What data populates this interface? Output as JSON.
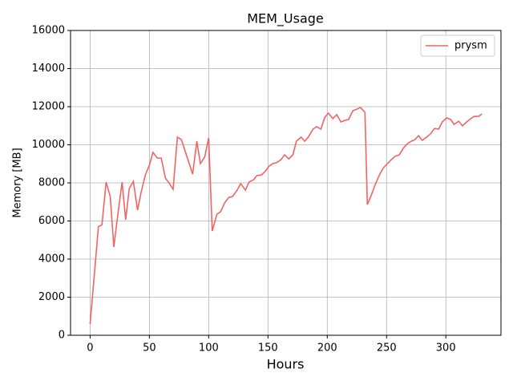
{
  "chart_data": {
    "type": "line",
    "title": "MEM_Usage",
    "x_label": "Hours",
    "y_label": "Memory [MB]",
    "x": [
      0,
      4.7,
      7,
      10,
      13.5,
      17,
      20,
      23.6,
      27,
      30,
      33,
      36.5,
      40,
      43,
      46.6,
      50,
      53,
      56.7,
      60,
      63.5,
      67,
      70,
      73.6,
      77,
      86.5,
      90,
      93,
      96.6,
      100,
      103,
      107,
      110,
      113.5,
      117,
      120,
      123.6,
      127,
      131,
      134,
      138,
      140.5,
      144.6,
      148,
      151,
      154,
      157,
      161,
      164,
      167.6,
      171,
      174,
      178,
      181,
      184,
      188,
      191,
      194.6,
      198,
      201,
      204.7,
      208,
      211.5,
      215,
      218,
      221.6,
      225,
      228,
      231.8,
      233.8,
      237,
      240.5,
      244,
      247,
      250.7,
      254,
      257,
      260.8,
      264,
      267.6,
      271,
      274,
      277,
      280,
      283.8,
      287,
      290.5,
      294,
      297,
      300.7,
      304,
      307,
      310.8,
      314,
      317.6,
      321,
      324,
      327.7,
      330.4
    ],
    "series": [
      {
        "name": "prysm",
        "color": "#f26464",
        "values": [
          590,
          4000,
          5700,
          5800,
          8040,
          7280,
          4630,
          6440,
          8040,
          6060,
          7700,
          8080,
          6570,
          7500,
          8420,
          8930,
          9600,
          9300,
          9300,
          8250,
          7960,
          7660,
          10400,
          10270,
          8460,
          10190,
          9010,
          9350,
          10360,
          5470,
          6360,
          6480,
          6950,
          7240,
          7280,
          7580,
          7960,
          7620,
          8040,
          8170,
          8380,
          8420,
          8630,
          8880,
          9010,
          9050,
          9220,
          9470,
          9260,
          9470,
          10190,
          10400,
          10190,
          10400,
          10820,
          10950,
          10820,
          11450,
          11660,
          11370,
          11580,
          11200,
          11280,
          11330,
          11790,
          11870,
          11960,
          11700,
          6860,
          7330,
          7920,
          8420,
          8760,
          9010,
          9220,
          9390,
          9470,
          9810,
          10060,
          10190,
          10270,
          10480,
          10230,
          10400,
          10570,
          10860,
          10820,
          11200,
          11410,
          11330,
          11070,
          11240,
          10990,
          11200,
          11370,
          11490,
          11490,
          11620
        ]
      }
    ],
    "xlim": [
      -16.5,
      346.5
    ],
    "ylim": [
      0,
      16000
    ],
    "xticks": [
      0,
      50,
      100,
      150,
      200,
      250,
      300
    ],
    "yticks": [
      0,
      2000,
      4000,
      6000,
      8000,
      10000,
      12000,
      14000,
      16000
    ],
    "grid": true,
    "legend": "upper right"
  }
}
